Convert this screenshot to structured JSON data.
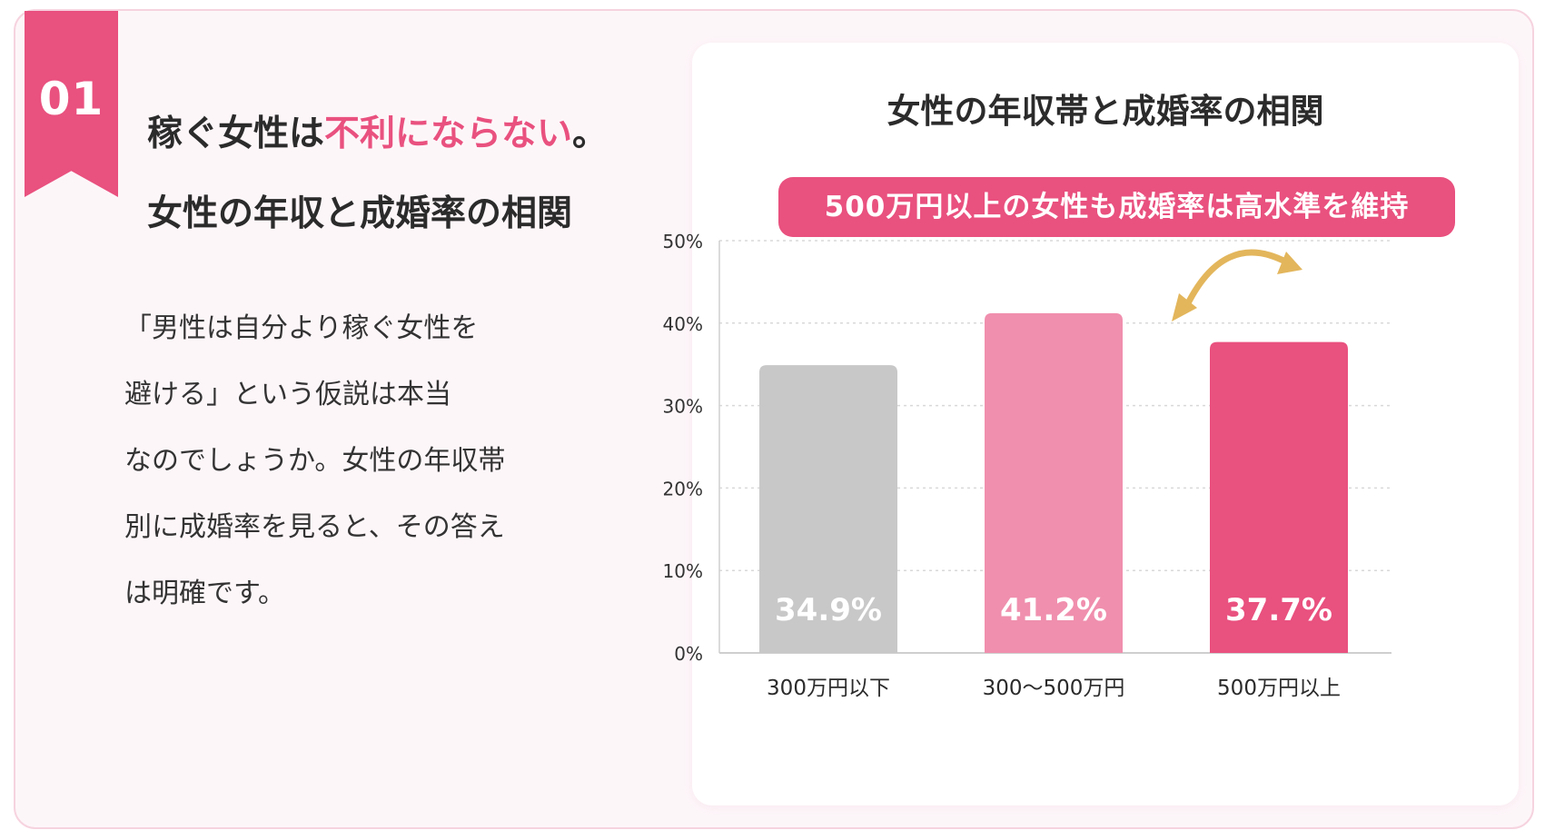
{
  "badge": {
    "number": "01"
  },
  "heading": {
    "line1_prefix": "稼ぐ女性は",
    "line1_accent": "不利にならない",
    "line1_suffix": "。",
    "line2": "女性の年収と成婚率の相関"
  },
  "body_text": "「男性は自分より稼ぐ女性を\n避ける」という仮説は本当\nなのでしょうか。女性の年収帯\n別に成婚率を見ると、その答え\nは明確です。",
  "colors": {
    "accent": "#e9517f",
    "card_background": "#fdf6f9",
    "gray_bar": "#c8c8c8",
    "light_pink_bar": "#f08fae",
    "pink_bar": "#e9517f",
    "arrow": "#e3b65c"
  },
  "chart_data": {
    "type": "bar",
    "title": "女性の年収帯と成婚率の相関",
    "subtitle": "500万円以上の女性も成婚率は高水準を維持",
    "categories": [
      "300万円以下",
      "300〜500万円",
      "500万円以上"
    ],
    "values": [
      34.9,
      41.2,
      37.7
    ],
    "data_labels": [
      "34.9%",
      "41.2%",
      "37.7%"
    ],
    "bar_colors": [
      "#c8c8c8",
      "#f08fae",
      "#e9517f"
    ],
    "ylim": [
      0,
      50
    ],
    "yticks": [
      "0%",
      "10%",
      "20%",
      "30%",
      "40%",
      "50%"
    ],
    "ytick_values": [
      0,
      10,
      20,
      30,
      40,
      50
    ],
    "grid": true,
    "annotation": "double-headed curved arrow between 300〜500万円 and 500万円以上 bars"
  }
}
